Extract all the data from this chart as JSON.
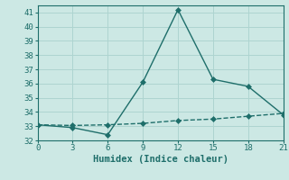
{
  "xlabel": "Humidex (Indice chaleur)",
  "x": [
    0,
    3,
    6,
    9,
    12,
    15,
    18,
    21
  ],
  "y_line1": [
    33.1,
    32.9,
    32.4,
    36.1,
    41.2,
    36.3,
    35.8,
    33.8
  ],
  "y_line2": [
    33.1,
    33.05,
    33.1,
    33.2,
    33.4,
    33.5,
    33.7,
    33.9
  ],
  "line_color": "#1e6e6a",
  "bg_color": "#cce8e4",
  "grid_color": "#aed4d0",
  "xlim": [
    0,
    21
  ],
  "ylim": [
    32,
    41.5
  ],
  "xticks": [
    0,
    3,
    6,
    9,
    12,
    15,
    18,
    21
  ],
  "yticks": [
    32,
    33,
    34,
    35,
    36,
    37,
    38,
    39,
    40,
    41
  ],
  "markersize": 3,
  "linewidth": 1.0,
  "tick_fontsize": 6.5,
  "xlabel_fontsize": 7.5
}
